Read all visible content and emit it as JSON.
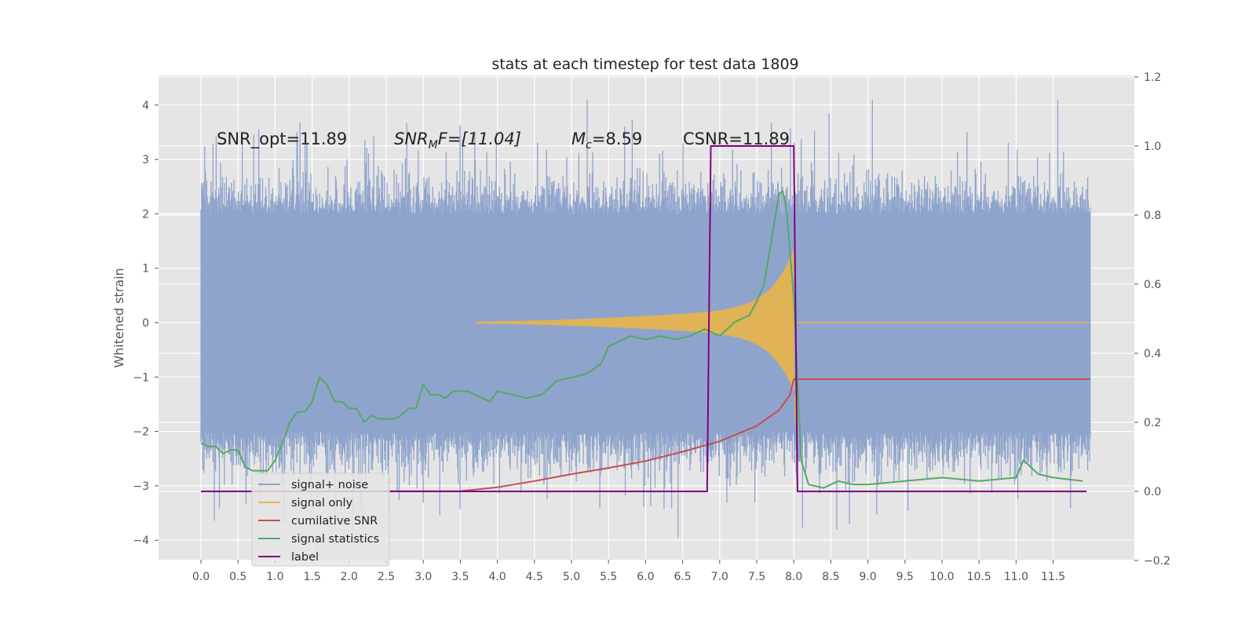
{
  "chart_data": {
    "type": "line",
    "title": "stats at each timestep for test data 1809",
    "ylabel": "Whitened strain",
    "xlim": [
      -0.5,
      12.7
    ],
    "ylim": [
      -4.4,
      4.5
    ],
    "y2lim": [
      -0.2,
      1.2
    ],
    "x_ticks": [
      "0.0",
      "0.5",
      "1.0",
      "1.5",
      "2.0",
      "2.5",
      "3.0",
      "3.5",
      "4.0",
      "4.5",
      "5.0",
      "5.5",
      "6.0",
      "6.5",
      "7.0",
      "7.5",
      "8.0",
      "8.5",
      "9.0",
      "9.5",
      "10.0",
      "10.5",
      "11.0",
      "11.5"
    ],
    "y_ticks": [
      "4",
      "3",
      "2",
      "1",
      "0",
      "−1",
      "−2",
      "−3",
      "−4"
    ],
    "y2_ticks": [
      "1.2",
      "1.0",
      "0.8",
      "0.6",
      "0.4",
      "0.2",
      "0.0",
      "−0.2"
    ],
    "grid": true,
    "legend_position": "lower-left",
    "annotations": {
      "snr_opt": "SNR_opt=11.89",
      "snr_mf_main": "SNR",
      "snr_mf_sub": "M",
      "snr_mf_rest": "F=[11.04]",
      "mc_main": "M",
      "mc_sub": "c",
      "mc_rest": "=8.59",
      "csnr": "CSNR=11.89"
    },
    "series": [
      {
        "name": "signal+ noise",
        "color": "#8fa4cc",
        "axis": "left",
        "kind": "noise",
        "x_range": [
          0.0,
          12.0
        ],
        "envelope_typical": [
          -2.2,
          2.4
        ]
      },
      {
        "name": "signal only",
        "color": "#f0b63c",
        "axis": "left",
        "kind": "chirp",
        "x_range": [
          3.7,
          8.0
        ]
      },
      {
        "name": "cumilative SNR",
        "color": "#c44e52",
        "axis": "right",
        "x": [
          0.0,
          3.5,
          4.0,
          4.5,
          5.0,
          5.5,
          6.0,
          6.5,
          7.0,
          7.5,
          7.8,
          7.95,
          8.0,
          12.0
        ],
        "values": [
          0.0,
          0.001,
          0.012,
          0.03,
          0.05,
          0.068,
          0.088,
          0.115,
          0.145,
          0.19,
          0.235,
          0.28,
          0.325,
          0.325
        ]
      },
      {
        "name": "signal statistics",
        "color": "#55a868",
        "axis": "right",
        "x": [
          0.0,
          0.1,
          0.2,
          0.3,
          0.4,
          0.5,
          0.6,
          0.7,
          0.8,
          0.9,
          1.0,
          1.1,
          1.2,
          1.3,
          1.4,
          1.5,
          1.6,
          1.7,
          1.8,
          1.9,
          2.0,
          2.1,
          2.2,
          2.3,
          2.4,
          2.5,
          2.6,
          2.7,
          2.8,
          2.9,
          3.0,
          3.1,
          3.2,
          3.3,
          3.4,
          3.5,
          3.6,
          3.7,
          3.8,
          3.9,
          4.0,
          4.2,
          4.4,
          4.6,
          4.8,
          5.0,
          5.2,
          5.4,
          5.5,
          5.6,
          5.8,
          6.0,
          6.2,
          6.4,
          6.6,
          6.8,
          7.0,
          7.2,
          7.4,
          7.5,
          7.6,
          7.7,
          7.8,
          7.85,
          7.9,
          8.0,
          8.1,
          8.2,
          8.4,
          8.6,
          8.8,
          9.0,
          9.5,
          10.0,
          10.5,
          11.0,
          11.1,
          11.3,
          11.5,
          11.9
        ],
        "values": [
          0.14,
          0.13,
          0.13,
          0.11,
          0.12,
          0.12,
          0.07,
          0.06,
          0.06,
          0.06,
          0.09,
          0.14,
          0.2,
          0.23,
          0.23,
          0.26,
          0.33,
          0.31,
          0.26,
          0.26,
          0.24,
          0.24,
          0.2,
          0.22,
          0.21,
          0.21,
          0.21,
          0.22,
          0.24,
          0.24,
          0.31,
          0.28,
          0.28,
          0.27,
          0.29,
          0.29,
          0.29,
          0.28,
          0.27,
          0.26,
          0.29,
          0.28,
          0.27,
          0.28,
          0.32,
          0.33,
          0.34,
          0.37,
          0.42,
          0.43,
          0.45,
          0.44,
          0.45,
          0.44,
          0.45,
          0.47,
          0.45,
          0.49,
          0.51,
          0.55,
          0.6,
          0.73,
          0.86,
          0.87,
          0.82,
          0.56,
          0.09,
          0.02,
          0.01,
          0.03,
          0.02,
          0.02,
          0.03,
          0.04,
          0.03,
          0.04,
          0.09,
          0.05,
          0.04,
          0.03
        ]
      },
      {
        "name": "label",
        "color": "#800080",
        "axis": "right",
        "x": [
          0.0,
          6.83,
          6.88,
          8.0,
          8.05,
          11.95
        ],
        "values": [
          0.0,
          0.0,
          1.0,
          1.0,
          0.0,
          0.0
        ]
      }
    ]
  }
}
